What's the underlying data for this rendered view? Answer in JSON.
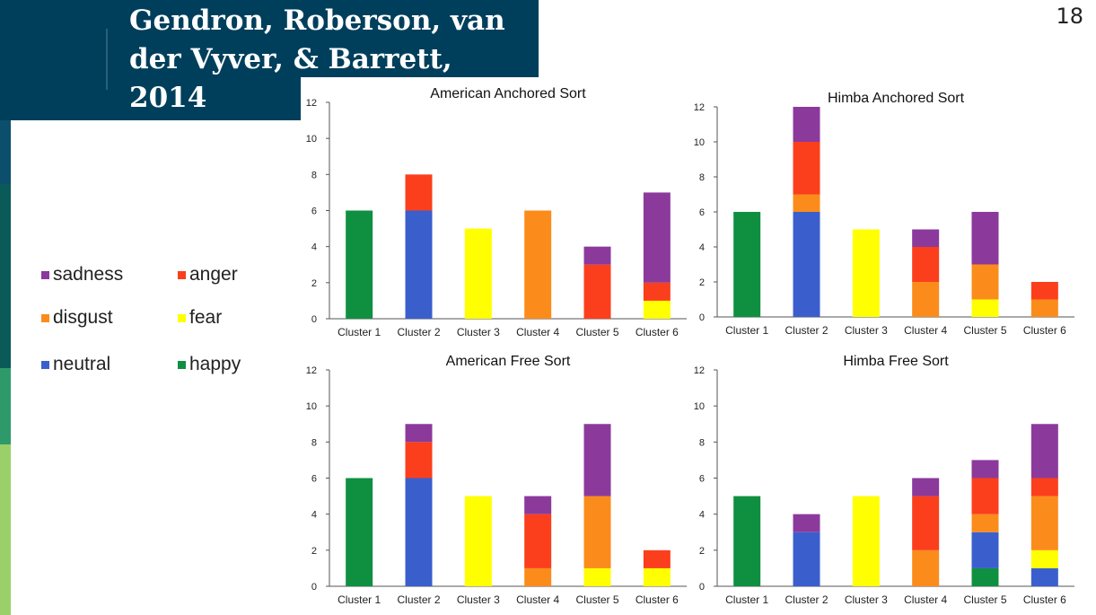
{
  "slide": {
    "title": "Gendron, Roberson, van der Vyver, & Barrett, 2014",
    "page_number": "18"
  },
  "colors": {
    "sadness": "#8b3a9c",
    "anger": "#fb3f1c",
    "disgust": "#fb8c1c",
    "fear": "#ffff00",
    "neutral": "#3a5fcd",
    "happy": "#0f9040",
    "title_bg": "#003f5c"
  },
  "legend": [
    {
      "key": "sadness",
      "label": "sadness"
    },
    {
      "key": "anger",
      "label": "anger"
    },
    {
      "key": "disgust",
      "label": "disgust"
    },
    {
      "key": "fear",
      "label": "fear"
    },
    {
      "key": "neutral",
      "label": "neutral"
    },
    {
      "key": "happy",
      "label": "happy"
    }
  ],
  "chart_data": [
    {
      "type": "bar",
      "stacked": true,
      "title": "American Anchored Sort",
      "categories": [
        "Cluster 1",
        "Cluster 2",
        "Cluster 3",
        "Cluster 4",
        "Cluster 5",
        "Cluster 6"
      ],
      "yticks": [
        "0",
        "2",
        "4",
        "6",
        "8",
        "10",
        "12"
      ],
      "ylim": [
        0,
        12
      ],
      "series": [
        {
          "name": "happy",
          "values": [
            6,
            0,
            0,
            0,
            0,
            0
          ]
        },
        {
          "name": "neutral",
          "values": [
            0,
            6,
            0,
            0,
            0,
            0
          ]
        },
        {
          "name": "fear",
          "values": [
            0,
            0,
            5,
            0,
            0,
            1
          ]
        },
        {
          "name": "disgust",
          "values": [
            0,
            0,
            0,
            6,
            0,
            0
          ]
        },
        {
          "name": "anger",
          "values": [
            0,
            2,
            0,
            0,
            3,
            1
          ]
        },
        {
          "name": "sadness",
          "values": [
            0,
            0,
            0,
            0,
            1,
            5
          ]
        }
      ]
    },
    {
      "type": "bar",
      "stacked": true,
      "title": "Himba Anchored Sort",
      "categories": [
        "Cluster 1",
        "Cluster 2",
        "Cluster 3",
        "Cluster 4",
        "Cluster 5",
        "Cluster 6"
      ],
      "yticks": [
        "0",
        "2",
        "4",
        "6",
        "8",
        "10",
        "12"
      ],
      "ylim": [
        0,
        12
      ],
      "series": [
        {
          "name": "happy",
          "values": [
            6,
            0,
            0,
            0,
            0,
            0
          ]
        },
        {
          "name": "neutral",
          "values": [
            0,
            6,
            0,
            0,
            0,
            0
          ]
        },
        {
          "name": "fear",
          "values": [
            0,
            0,
            5,
            0,
            1,
            0
          ]
        },
        {
          "name": "disgust",
          "values": [
            0,
            1,
            0,
            2,
            2,
            1
          ]
        },
        {
          "name": "anger",
          "values": [
            0,
            3,
            0,
            2,
            0,
            1
          ]
        },
        {
          "name": "sadness",
          "values": [
            0,
            2,
            0,
            1,
            3,
            0
          ]
        }
      ]
    },
    {
      "type": "bar",
      "stacked": true,
      "title": "American Free Sort",
      "categories": [
        "Cluster 1",
        "Cluster 2",
        "Cluster 3",
        "Cluster 4",
        "Cluster 5",
        "Cluster 6"
      ],
      "yticks": [
        "0",
        "2",
        "4",
        "6",
        "8",
        "10",
        "12"
      ],
      "ylim": [
        0,
        12
      ],
      "series": [
        {
          "name": "happy",
          "values": [
            6,
            0,
            0,
            0,
            0,
            0
          ]
        },
        {
          "name": "neutral",
          "values": [
            0,
            6,
            0,
            0,
            0,
            0
          ]
        },
        {
          "name": "fear",
          "values": [
            0,
            0,
            5,
            0,
            1,
            1
          ]
        },
        {
          "name": "disgust",
          "values": [
            0,
            0,
            0,
            1,
            4,
            0
          ]
        },
        {
          "name": "anger",
          "values": [
            0,
            2,
            0,
            3,
            0,
            1
          ]
        },
        {
          "name": "sadness",
          "values": [
            0,
            1,
            0,
            1,
            4,
            0
          ]
        }
      ]
    },
    {
      "type": "bar",
      "stacked": true,
      "title": "Himba Free Sort",
      "categories": [
        "Cluster 1",
        "Cluster 2",
        "Cluster 3",
        "Cluster 4",
        "Cluster 5",
        "Cluster 6"
      ],
      "yticks": [
        "0",
        "2",
        "4",
        "6",
        "8",
        "10",
        "12"
      ],
      "ylim": [
        0,
        12
      ],
      "series": [
        {
          "name": "happy",
          "values": [
            5,
            0,
            0,
            0,
            1,
            0
          ]
        },
        {
          "name": "neutral",
          "values": [
            0,
            3,
            0,
            0,
            2,
            1
          ]
        },
        {
          "name": "fear",
          "values": [
            0,
            0,
            5,
            0,
            0,
            1
          ]
        },
        {
          "name": "disgust",
          "values": [
            0,
            0,
            0,
            2,
            1,
            3
          ]
        },
        {
          "name": "anger",
          "values": [
            0,
            0,
            0,
            3,
            2,
            1
          ]
        },
        {
          "name": "sadness",
          "values": [
            0,
            1,
            0,
            1,
            1,
            3
          ]
        }
      ]
    }
  ]
}
